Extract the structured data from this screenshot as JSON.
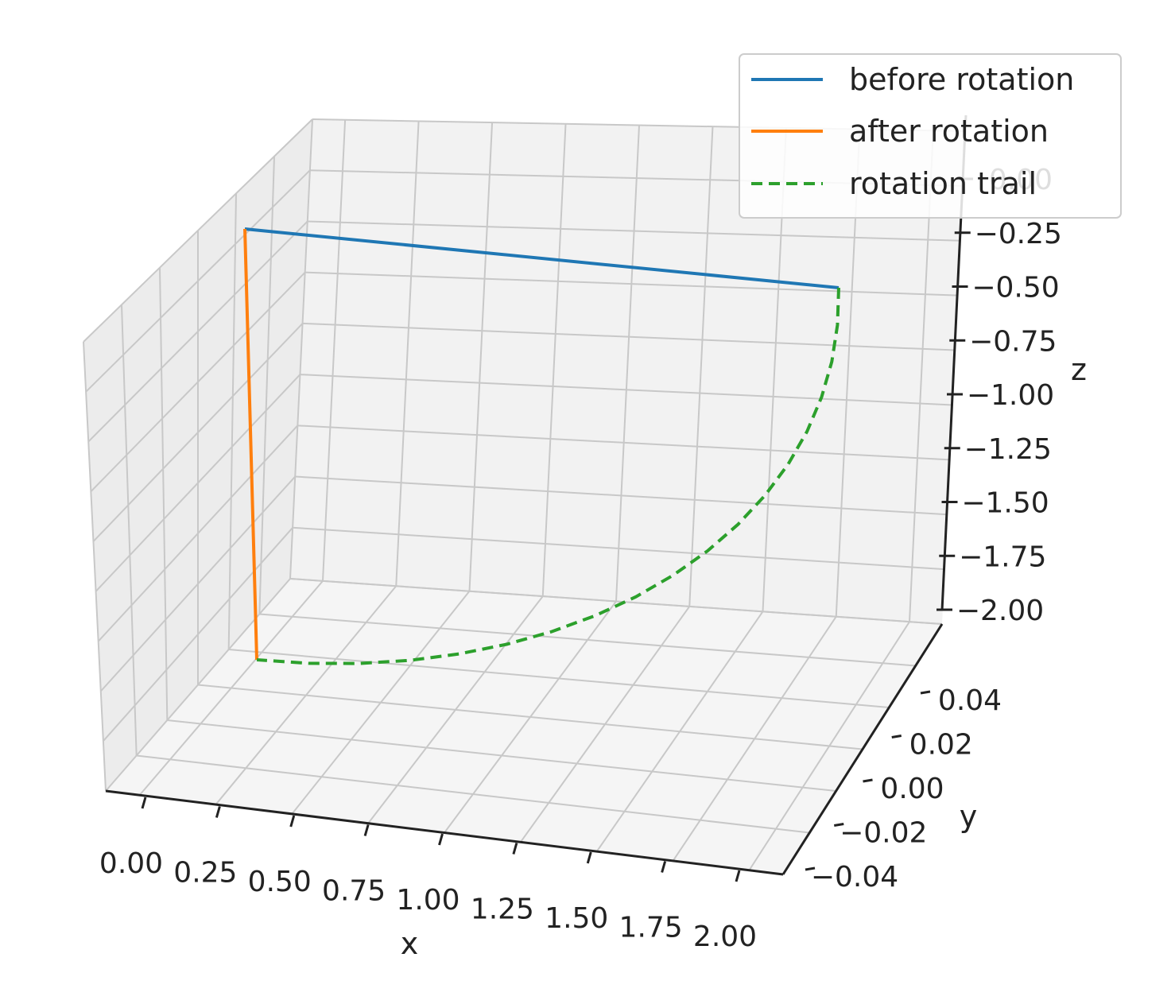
{
  "chart_data": {
    "type": "line",
    "projection": "3d",
    "title": "",
    "xlabel": "x",
    "ylabel": "y",
    "zlabel": "z",
    "xlim": [
      0,
      2
    ],
    "ylim": [
      -0.05,
      0.05
    ],
    "zlim": [
      -2,
      0
    ],
    "grid": true,
    "legend": {
      "position": "top-right",
      "entries": [
        "before rotation",
        "after rotation",
        "rotation trail"
      ]
    },
    "xticks": [
      "0.00",
      "0.25",
      "0.50",
      "0.75",
      "1.00",
      "1.25",
      "1.50",
      "1.75",
      "2.00"
    ],
    "yticks": [
      "−0.04",
      "−0.02",
      "0.00",
      "0.02",
      "0.04"
    ],
    "zticks": [
      "−2.00",
      "−1.75",
      "−1.50",
      "−1.25",
      "−1.00",
      "−0.75",
      "−0.50",
      "−0.25",
      "0.00"
    ],
    "series": [
      {
        "name": "before rotation",
        "color": "#1f77b4",
        "style": "solid",
        "x": [
          0,
          2
        ],
        "y": [
          0,
          0
        ],
        "z": [
          0,
          0
        ]
      },
      {
        "name": "after rotation",
        "color": "#ff7f0e",
        "style": "solid",
        "x": [
          0,
          0
        ],
        "y": [
          0,
          0
        ],
        "z": [
          0,
          -2
        ]
      },
      {
        "name": "rotation trail",
        "color": "#2ca02c",
        "style": "dashed",
        "x": [
          2.0,
          1.9923,
          1.9696,
          1.9319,
          1.8794,
          1.8126,
          1.7321,
          1.6383,
          1.5321,
          1.4142,
          1.2856,
          1.1472,
          1.0,
          0.8452,
          0.684,
          0.5176,
          0.3473,
          0.1743,
          0.0
        ],
        "y": [
          0,
          0,
          0,
          0,
          0,
          0,
          0,
          0,
          0,
          0,
          0,
          0,
          0,
          0,
          0,
          0,
          0,
          0,
          0
        ],
        "z": [
          0.0,
          -0.1743,
          -0.3473,
          -0.5176,
          -0.684,
          -0.8452,
          -1.0,
          -1.1472,
          -1.2856,
          -1.4142,
          -1.5321,
          -1.6383,
          -1.7321,
          -1.8126,
          -1.8794,
          -1.9319,
          -1.9696,
          -1.9923,
          -2.0
        ]
      }
    ]
  }
}
